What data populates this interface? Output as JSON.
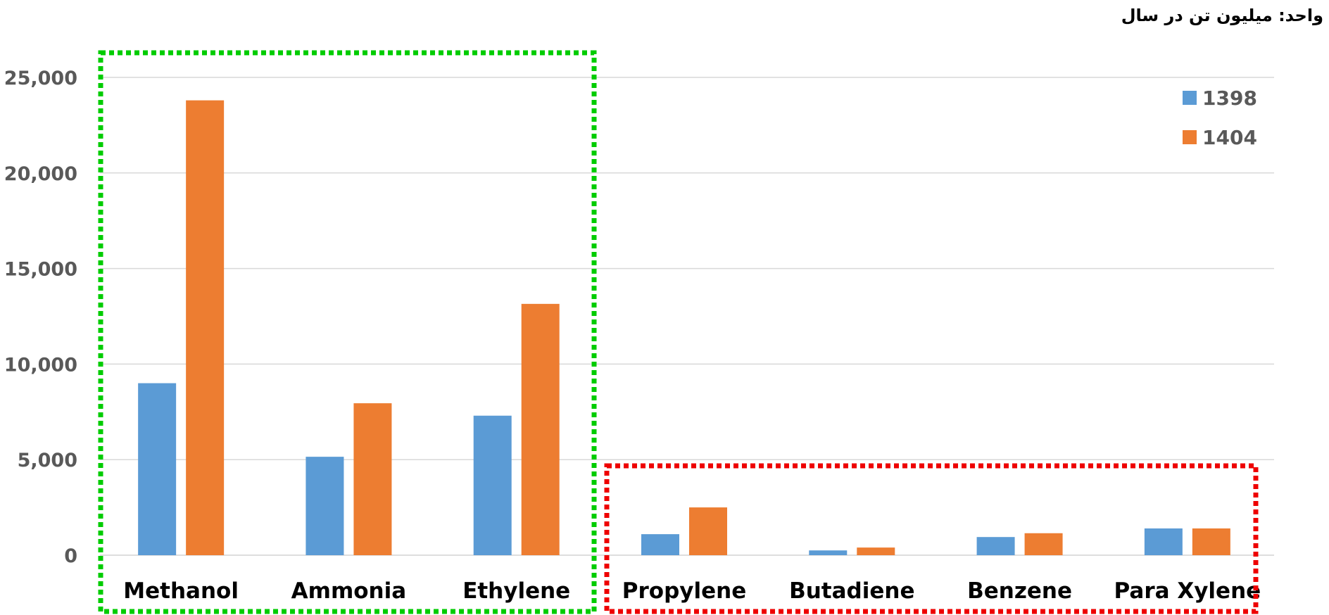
{
  "unit_note": "واحد: میلیون تن در سال",
  "chart_data": {
    "type": "bar",
    "categories": [
      "Methanol",
      "Ammonia",
      "Ethylene",
      "Propylene",
      "Butadiene",
      "Benzene",
      "Para Xylene"
    ],
    "series": [
      {
        "name": "1398",
        "values": [
          9000,
          5150,
          7300,
          1100,
          250,
          950,
          1400
        ]
      },
      {
        "name": "1404",
        "values": [
          23800,
          7950,
          13150,
          2500,
          400,
          1150,
          1400
        ]
      }
    ],
    "yticks": [
      "25,000",
      "20,000",
      "15,000",
      "10,000",
      "5,000",
      "0"
    ],
    "ylim": [
      0,
      25000
    ],
    "grid": true,
    "legend_position": "top-right",
    "colors": {
      "1398": "#5b9bd5",
      "1404": "#ed7d31",
      "grid": "#d9d9d9",
      "green_box": "#00cc00",
      "red_box": "#ee0000"
    },
    "groups": [
      {
        "name": "green-box",
        "categories": [
          "Methanol",
          "Ammonia",
          "Ethylene"
        ]
      },
      {
        "name": "red-box",
        "categories": [
          "Propylene",
          "Butadiene",
          "Benzene",
          "Para Xylene"
        ]
      }
    ]
  }
}
